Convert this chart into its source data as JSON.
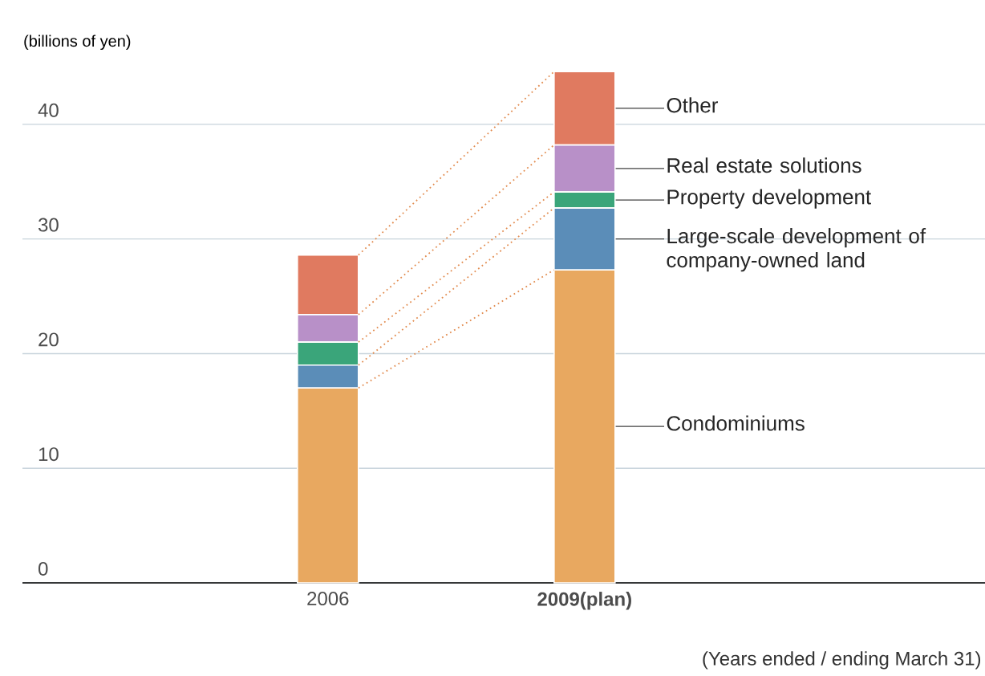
{
  "chart_data": {
    "type": "bar",
    "stacked": true,
    "ylabel": "(billions of yen)",
    "categories": [
      "2006",
      "2009(plan)"
    ],
    "series": [
      {
        "name": "Condominiums",
        "color": "#e8a860",
        "values": [
          17.0,
          27.3
        ]
      },
      {
        "name": "Large-scale development of company-owned land",
        "color": "#5b8db8",
        "values": [
          2.0,
          5.4
        ]
      },
      {
        "name": "Property development",
        "color": "#3aa57a",
        "values": [
          2.0,
          1.4
        ]
      },
      {
        "name": "Real estate solutions",
        "color": "#b890c8",
        "values": [
          2.4,
          4.1
        ]
      },
      {
        "name": "Other",
        "color": "#e07a60",
        "values": [
          5.2,
          6.4
        ]
      }
    ],
    "ylim": [
      0,
      44.6
    ],
    "yticks": [
      0,
      10,
      20,
      30,
      40
    ],
    "grid": "y",
    "annotations": [
      "(Years ended / ending March 31)"
    ]
  }
}
